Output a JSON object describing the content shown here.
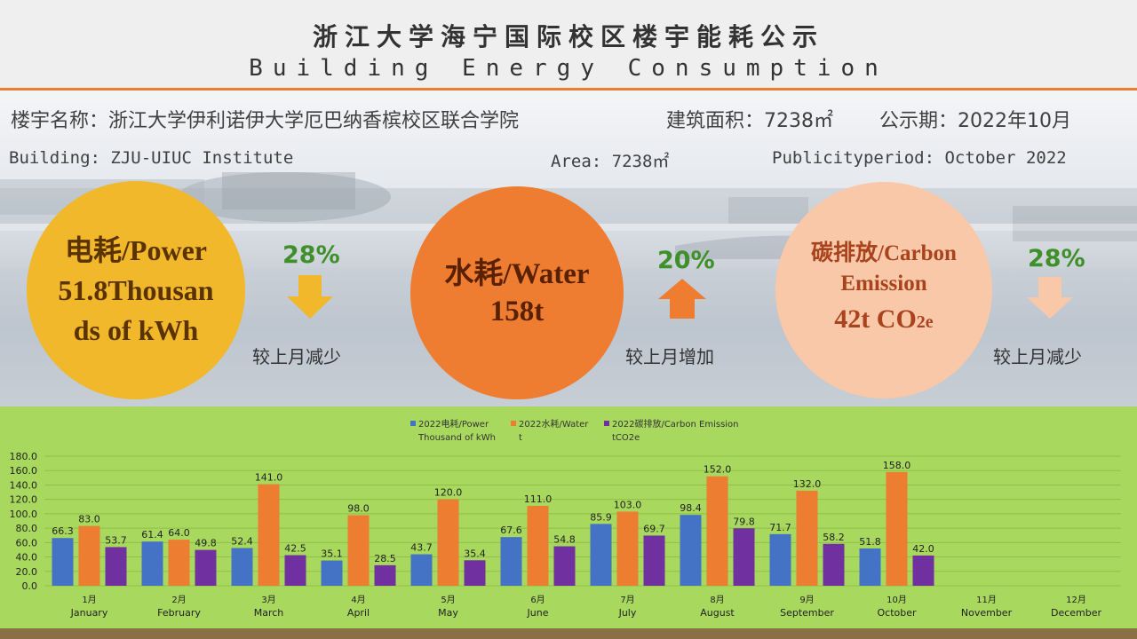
{
  "header": {
    "title_cn": "浙江大学海宁国际校区楼宇能耗公示",
    "title_en": "Building Energy Consumption"
  },
  "info": {
    "building_cn": "楼宇名称：浙江大学伊利诺伊大学厄巴纳香槟校区联合学院",
    "area_cn": "建筑面积：7238㎡",
    "period_cn": "公示期：2022年10月",
    "building_en": "Building: ZJU-UIUC Institute",
    "area_en": "Area: 7238㎡",
    "period_en": "Publicityperiod: October 2022"
  },
  "colors": {
    "power": "#4472c4",
    "water": "#ed7d31",
    "carbon": "#7030a0"
  },
  "indicators": {
    "power": {
      "label": "电耗/Power",
      "value_line1": "51.8Thousan",
      "value_line2": "ds of kWh",
      "change": "28%",
      "direction": "down",
      "comparison": "较上月减少"
    },
    "water": {
      "label": "水耗/Water",
      "value": "158t",
      "change": "20%",
      "direction": "up",
      "comparison": "较上月增加"
    },
    "carbon": {
      "label_line1": "碳排放/Carbon",
      "label_line2": "Emission",
      "value_main": "42t CO",
      "value_sub": "2e",
      "change": "28%",
      "direction": "down",
      "comparison": "较上月减少"
    }
  },
  "chart_data": {
    "type": "bar",
    "categories": [
      {
        "cn": "1月",
        "en": "January"
      },
      {
        "cn": "2月",
        "en": "February"
      },
      {
        "cn": "3月",
        "en": "March"
      },
      {
        "cn": "4月",
        "en": "April"
      },
      {
        "cn": "5月",
        "en": "May"
      },
      {
        "cn": "6月",
        "en": "June"
      },
      {
        "cn": "7月",
        "en": "July"
      },
      {
        "cn": "8月",
        "en": "August"
      },
      {
        "cn": "9月",
        "en": "September"
      },
      {
        "cn": "10月",
        "en": "October"
      },
      {
        "cn": "11月",
        "en": "November"
      },
      {
        "cn": "12月",
        "en": "December"
      }
    ],
    "series": [
      {
        "name": "2022电耗/Power",
        "name_line2": "Thousand of kWh",
        "color": "#4472c4",
        "values": [
          66.3,
          61.4,
          52.4,
          35.1,
          43.7,
          67.6,
          85.9,
          98.4,
          71.7,
          51.8,
          null,
          null
        ]
      },
      {
        "name": "2022水耗/Water",
        "name_line2": "t",
        "color": "#ed7d31",
        "values": [
          83.0,
          64.0,
          141.0,
          98.0,
          120.0,
          111.0,
          103.0,
          152.0,
          132.0,
          158.0,
          null,
          null
        ]
      },
      {
        "name": "2022碳排放/Carbon Emission",
        "name_line2": "tCO2e",
        "color": "#7030a0",
        "values": [
          53.7,
          49.8,
          42.5,
          28.5,
          35.4,
          54.8,
          69.7,
          79.8,
          58.2,
          42.0,
          null,
          null
        ]
      }
    ],
    "ylim": [
      0,
      180
    ],
    "y_ticks": [
      "0.0",
      "20.0",
      "40.0",
      "60.0",
      "80.0",
      "100.0",
      "120.0",
      "140.0",
      "160.0",
      "180.0"
    ],
    "grid": true,
    "legend_position": "top"
  }
}
